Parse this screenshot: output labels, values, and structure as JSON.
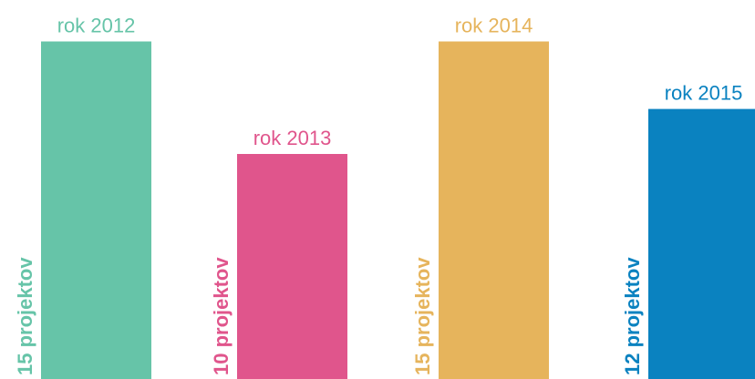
{
  "chart_data": {
    "type": "bar",
    "categories": [
      "rok 2012",
      "rok 2013",
      "rok 2014",
      "rok 2015"
    ],
    "values": [
      15,
      10,
      15,
      12
    ],
    "value_labels": [
      "15 projektov",
      "10 projektov",
      "15 projektov",
      "12 projektov"
    ],
    "colors": [
      "#66c4a8",
      "#e0558c",
      "#e6b45c",
      "#0a82c0"
    ]
  }
}
